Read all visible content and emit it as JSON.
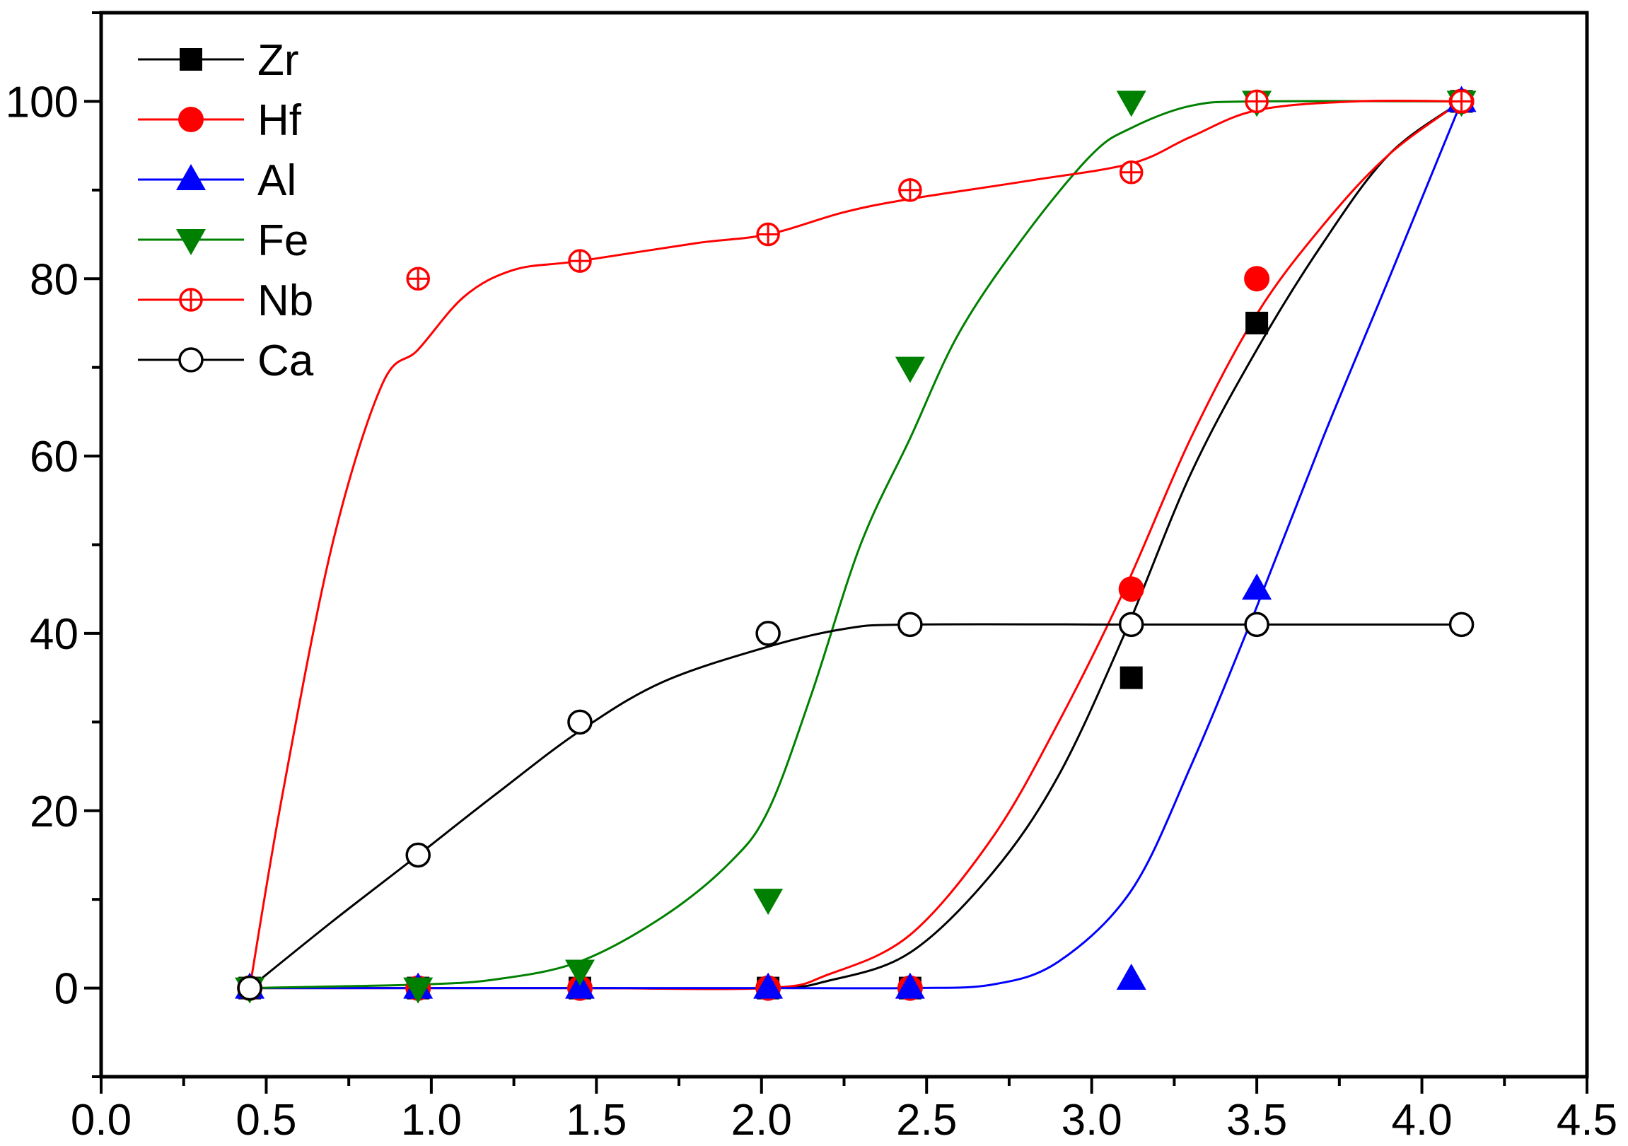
{
  "chart_data": {
    "type": "line",
    "title": "",
    "xlabel": "",
    "ylabel": "",
    "xlim": [
      0.0,
      4.5
    ],
    "ylim": [
      -10,
      110
    ],
    "xticks": [
      "0.0",
      "0.5",
      "1.0",
      "1.5",
      "2.0",
      "2.5",
      "3.0",
      "3.5",
      "4.0",
      "4.5"
    ],
    "yticks": [
      "0",
      "20",
      "40",
      "60",
      "80",
      "100"
    ],
    "legend_position": "top-left",
    "series": [
      {
        "name": "Zr",
        "color": "#000000",
        "marker": "square",
        "points": [
          [
            0.45,
            0
          ],
          [
            0.96,
            0
          ],
          [
            1.45,
            0
          ],
          [
            2.02,
            0
          ],
          [
            2.45,
            0
          ],
          [
            3.12,
            35
          ],
          [
            3.5,
            75
          ],
          [
            4.12,
            100
          ]
        ],
        "curve": [
          [
            0.45,
            0
          ],
          [
            0.96,
            0
          ],
          [
            1.45,
            0
          ],
          [
            2.02,
            0
          ],
          [
            2.2,
            0.8
          ],
          [
            2.45,
            4
          ],
          [
            2.7,
            13
          ],
          [
            2.9,
            24
          ],
          [
            3.1,
            40
          ],
          [
            3.3,
            58
          ],
          [
            3.5,
            72
          ],
          [
            3.7,
            84
          ],
          [
            3.9,
            94
          ],
          [
            4.12,
            100
          ]
        ]
      },
      {
        "name": "Hf",
        "color": "#ff0000",
        "marker": "circle",
        "points": [
          [
            0.45,
            0
          ],
          [
            0.96,
            0
          ],
          [
            1.45,
            0
          ],
          [
            2.02,
            0
          ],
          [
            2.45,
            0
          ],
          [
            3.12,
            45
          ],
          [
            3.5,
            80
          ],
          [
            4.12,
            100
          ]
        ],
        "curve": [
          [
            0.45,
            0
          ],
          [
            0.96,
            0
          ],
          [
            1.45,
            0
          ],
          [
            2.02,
            0
          ],
          [
            2.2,
            1.5
          ],
          [
            2.45,
            6
          ],
          [
            2.7,
            17
          ],
          [
            2.9,
            30
          ],
          [
            3.1,
            45
          ],
          [
            3.3,
            62
          ],
          [
            3.5,
            76
          ],
          [
            3.7,
            86
          ],
          [
            3.9,
            94
          ],
          [
            4.12,
            100
          ]
        ]
      },
      {
        "name": "Al",
        "color": "#0000ff",
        "marker": "triangle-up",
        "points": [
          [
            0.45,
            0
          ],
          [
            0.96,
            0
          ],
          [
            1.45,
            0
          ],
          [
            2.02,
            0
          ],
          [
            2.45,
            0
          ],
          [
            3.12,
            1
          ],
          [
            3.5,
            45
          ],
          [
            4.12,
            100
          ]
        ],
        "curve": [
          [
            0.45,
            0
          ],
          [
            0.96,
            0
          ],
          [
            1.45,
            0
          ],
          [
            2.02,
            0
          ],
          [
            2.45,
            0
          ],
          [
            2.7,
            0.4
          ],
          [
            2.9,
            3
          ],
          [
            3.12,
            11
          ],
          [
            3.3,
            25
          ],
          [
            3.5,
            43
          ],
          [
            3.7,
            62
          ],
          [
            3.9,
            80
          ],
          [
            4.12,
            100
          ]
        ]
      },
      {
        "name": "Fe",
        "color": "#008000",
        "marker": "triangle-down",
        "points": [
          [
            0.45,
            0
          ],
          [
            0.96,
            0
          ],
          [
            1.45,
            2
          ],
          [
            2.02,
            10
          ],
          [
            2.45,
            70
          ],
          [
            3.12,
            100
          ],
          [
            3.5,
            100
          ],
          [
            4.12,
            100
          ]
        ],
        "curve": [
          [
            0.45,
            0
          ],
          [
            0.96,
            0.4
          ],
          [
            1.2,
            1
          ],
          [
            1.45,
            3
          ],
          [
            1.7,
            8
          ],
          [
            1.9,
            14
          ],
          [
            2.02,
            20
          ],
          [
            2.15,
            33
          ],
          [
            2.3,
            50
          ],
          [
            2.45,
            62
          ],
          [
            2.6,
            74
          ],
          [
            2.8,
            85
          ],
          [
            3.0,
            94
          ],
          [
            3.12,
            97
          ],
          [
            3.3,
            99.5
          ],
          [
            3.5,
            100
          ],
          [
            4.12,
            100
          ]
        ]
      },
      {
        "name": "Nb",
        "color": "#ff0000",
        "marker": "circle-plus",
        "points": [
          [
            0.45,
            0
          ],
          [
            0.96,
            80
          ],
          [
            1.45,
            82
          ],
          [
            2.02,
            85
          ],
          [
            2.45,
            90
          ],
          [
            3.12,
            92
          ],
          [
            3.5,
            100
          ],
          [
            4.12,
            100
          ]
        ],
        "curve": [
          [
            0.45,
            0
          ],
          [
            0.55,
            22
          ],
          [
            0.7,
            50
          ],
          [
            0.85,
            68
          ],
          [
            0.96,
            72
          ],
          [
            1.1,
            78
          ],
          [
            1.25,
            81
          ],
          [
            1.45,
            82
          ],
          [
            1.8,
            84
          ],
          [
            2.02,
            85
          ],
          [
            2.25,
            87.5
          ],
          [
            2.45,
            89
          ],
          [
            2.8,
            91
          ],
          [
            3.12,
            93
          ],
          [
            3.3,
            96
          ],
          [
            3.5,
            99
          ],
          [
            3.8,
            100
          ],
          [
            4.12,
            100
          ]
        ]
      },
      {
        "name": "Ca",
        "color": "#000000",
        "marker": "open-circle",
        "points": [
          [
            0.45,
            0
          ],
          [
            0.96,
            15
          ],
          [
            1.45,
            30
          ],
          [
            2.02,
            40
          ],
          [
            2.45,
            41
          ],
          [
            3.12,
            41
          ],
          [
            3.5,
            41
          ],
          [
            4.12,
            41
          ]
        ],
        "curve": [
          [
            0.45,
            0
          ],
          [
            0.7,
            7.5
          ],
          [
            0.96,
            15
          ],
          [
            1.2,
            22
          ],
          [
            1.45,
            29
          ],
          [
            1.7,
            34.5
          ],
          [
            2.02,
            38.5
          ],
          [
            2.25,
            40.5
          ],
          [
            2.45,
            41
          ],
          [
            3.12,
            41
          ],
          [
            3.5,
            41
          ],
          [
            4.12,
            41
          ]
        ]
      }
    ]
  }
}
